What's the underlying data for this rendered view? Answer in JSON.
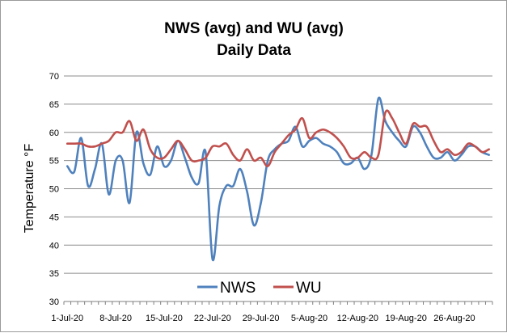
{
  "chart_data": {
    "type": "line",
    "title": [
      "NWS (avg)  and WU (avg)",
      "Daily Data"
    ],
    "xlabel": "",
    "ylabel": "Temperature  °F",
    "ylim": [
      30,
      70
    ],
    "yticks": [
      30,
      35,
      40,
      45,
      50,
      55,
      60,
      65,
      70
    ],
    "grid": true,
    "legend_position": "bottom-center",
    "x": [
      "1-Jul-20",
      "2-Jul-20",
      "3-Jul-20",
      "4-Jul-20",
      "5-Jul-20",
      "6-Jul-20",
      "7-Jul-20",
      "8-Jul-20",
      "9-Jul-20",
      "10-Jul-20",
      "11-Jul-20",
      "12-Jul-20",
      "13-Jul-20",
      "14-Jul-20",
      "15-Jul-20",
      "16-Jul-20",
      "17-Jul-20",
      "18-Jul-20",
      "19-Jul-20",
      "20-Jul-20",
      "21-Jul-20",
      "22-Jul-20",
      "23-Jul-20",
      "24-Jul-20",
      "25-Jul-20",
      "26-Jul-20",
      "27-Jul-20",
      "28-Jul-20",
      "29-Jul-20",
      "30-Jul-20",
      "31-Jul-20",
      "1-Aug-20",
      "2-Aug-20",
      "3-Aug-20",
      "4-Aug-20",
      "5-Aug-20",
      "6-Aug-20",
      "7-Aug-20",
      "8-Aug-20",
      "9-Aug-20",
      "10-Aug-20",
      "11-Aug-20",
      "12-Aug-20",
      "13-Aug-20",
      "14-Aug-20",
      "15-Aug-20",
      "16-Aug-20",
      "17-Aug-20",
      "18-Aug-20",
      "19-Aug-20",
      "20-Aug-20",
      "21-Aug-20",
      "22-Aug-20",
      "23-Aug-20",
      "24-Aug-20",
      "25-Aug-20",
      "26-Aug-20",
      "27-Aug-20",
      "28-Aug-20",
      "29-Aug-20",
      "30-Aug-20",
      "31-Aug-20"
    ],
    "xtick_labels": [
      "1-Jul-20",
      "8-Jul-20",
      "15-Jul-20",
      "22-Jul-20",
      "29-Jul-20",
      "5-Aug-20",
      "12-Aug-20",
      "19-Aug-20",
      "26-Aug-20"
    ],
    "xtick_indices": [
      0,
      7,
      14,
      21,
      28,
      35,
      42,
      49,
      56
    ],
    "series": [
      {
        "name": "NWS",
        "color": "#4f81bd",
        "values": [
          54.0,
          53.0,
          59.0,
          50.5,
          53.5,
          58.0,
          49.0,
          55.0,
          55.0,
          47.5,
          60.0,
          54.5,
          52.5,
          57.5,
          54.0,
          55.0,
          58.5,
          55.5,
          52.0,
          51.0,
          56.5,
          37.5,
          47.0,
          50.5,
          50.5,
          53.5,
          49.5,
          43.5,
          47.5,
          55.0,
          57.0,
          58.0,
          58.5,
          61.0,
          57.5,
          58.5,
          59.0,
          58.0,
          57.5,
          56.5,
          54.5,
          54.5,
          55.5,
          53.5,
          56.0,
          66.0,
          62.0,
          60.0,
          58.5,
          57.5,
          61.0,
          60.0,
          57.5,
          55.5,
          55.5,
          56.5,
          55.0,
          56.0,
          57.5,
          57.5,
          56.5,
          56.0
        ]
      },
      {
        "name": "WU",
        "color": "#c0504d",
        "values": [
          58.0,
          58.0,
          58.0,
          57.5,
          57.5,
          58.0,
          58.5,
          60.0,
          60.0,
          62.0,
          58.5,
          60.5,
          57.0,
          55.5,
          55.5,
          57.0,
          58.5,
          57.0,
          55.0,
          55.0,
          55.5,
          57.5,
          57.5,
          58.0,
          56.0,
          55.0,
          57.0,
          55.0,
          55.5,
          54.0,
          56.5,
          58.0,
          59.5,
          60.5,
          62.5,
          59.0,
          60.0,
          60.5,
          60.0,
          59.0,
          57.5,
          55.5,
          55.5,
          56.5,
          55.5,
          56.0,
          63.5,
          62.5,
          60.0,
          58.0,
          61.5,
          61.0,
          61.0,
          58.5,
          56.5,
          57.0,
          56.0,
          56.5,
          58.0,
          57.5,
          56.5,
          57.0
        ]
      }
    ]
  }
}
